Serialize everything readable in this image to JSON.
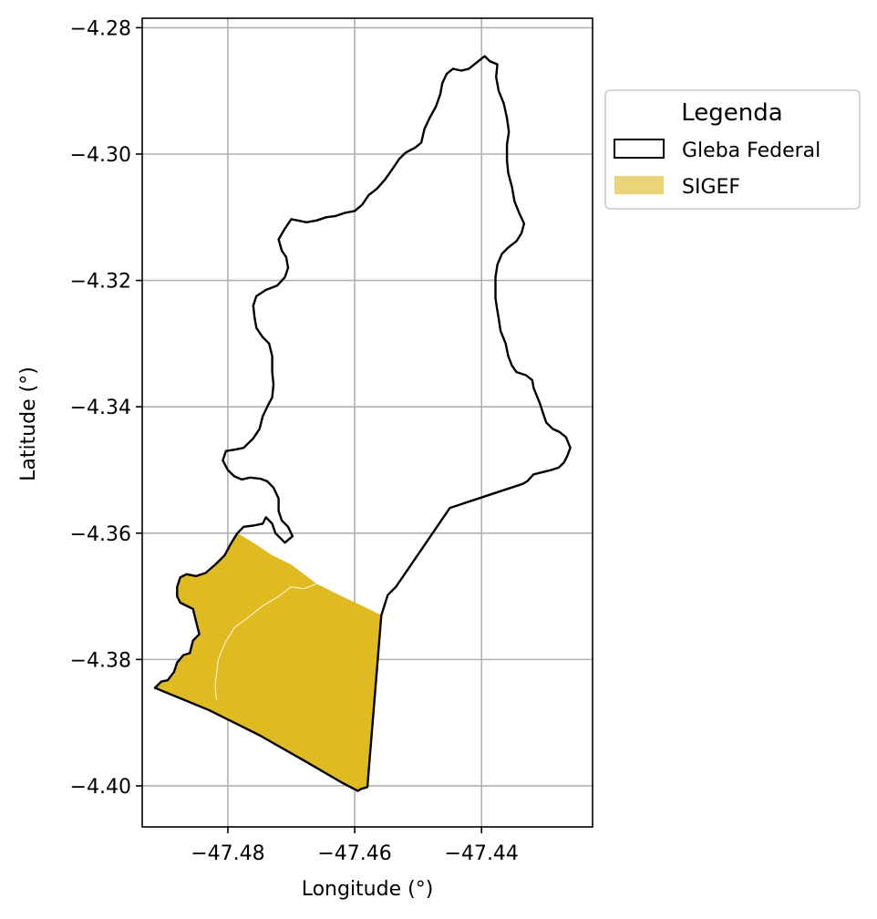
{
  "chart_data": {
    "type": "map",
    "xlabel": "Longitude (°)",
    "ylabel": "Latitude (°)",
    "xlim": [
      -47.4935,
      -47.4225
    ],
    "ylim": [
      -4.4065,
      -4.2785
    ],
    "grid": true,
    "x_ticks": [
      {
        "value": -47.48,
        "label": "−47.48"
      },
      {
        "value": -47.46,
        "label": "−47.46"
      },
      {
        "value": -47.44,
        "label": "−47.44"
      }
    ],
    "y_ticks": [
      {
        "value": -4.28,
        "label": "−4.28"
      },
      {
        "value": -4.3,
        "label": "−4.30"
      },
      {
        "value": -4.32,
        "label": "−4.32"
      },
      {
        "value": -4.34,
        "label": "−4.34"
      },
      {
        "value": -4.36,
        "label": "−4.36"
      },
      {
        "value": -4.38,
        "label": "−4.38"
      },
      {
        "value": -4.4,
        "label": "−4.40"
      }
    ],
    "legend": {
      "title": "Legenda",
      "placement": "outside-upper-right",
      "entries": [
        {
          "label": "Gleba Federal",
          "style": "outline",
          "color": "#000000"
        },
        {
          "label": "SIGEF",
          "style": "fill",
          "color": "#ebd477"
        }
      ]
    },
    "layers": [
      {
        "name": "Gleba Federal",
        "style": "outline",
        "stroke": "#000000",
        "coordinates": [
          [
            -47.4915,
            -4.3845
          ],
          [
            -47.4905,
            -4.3835
          ],
          [
            -47.4895,
            -4.3833
          ],
          [
            -47.4885,
            -4.382
          ],
          [
            -47.488,
            -4.3805
          ],
          [
            -47.487,
            -4.3793
          ],
          [
            -47.486,
            -4.379
          ],
          [
            -47.4855,
            -4.377
          ],
          [
            -47.4845,
            -4.376
          ],
          [
            -47.485,
            -4.374
          ],
          [
            -47.4855,
            -4.372
          ],
          [
            -47.4865,
            -4.3715
          ],
          [
            -47.4875,
            -4.371
          ],
          [
            -47.488,
            -4.37
          ],
          [
            -47.488,
            -4.3685
          ],
          [
            -47.4875,
            -4.367
          ],
          [
            -47.4865,
            -4.3665
          ],
          [
            -47.485,
            -4.3668
          ],
          [
            -47.4835,
            -4.3663
          ],
          [
            -47.482,
            -4.365
          ],
          [
            -47.4805,
            -4.3635
          ],
          [
            -47.4797,
            -4.362
          ],
          [
            -47.479,
            -4.3608
          ],
          [
            -47.4785,
            -4.36
          ],
          [
            -47.4775,
            -4.359
          ],
          [
            -47.476,
            -4.3588
          ],
          [
            -47.4745,
            -4.3585
          ],
          [
            -47.474,
            -4.3575
          ],
          [
            -47.473,
            -4.3585
          ],
          [
            -47.4725,
            -4.36
          ],
          [
            -47.471,
            -4.3615
          ],
          [
            -47.4698,
            -4.3605
          ],
          [
            -47.4705,
            -4.359
          ],
          [
            -47.4715,
            -4.358
          ],
          [
            -47.472,
            -4.3565
          ],
          [
            -47.472,
            -4.3545
          ],
          [
            -47.4728,
            -4.3528
          ],
          [
            -47.4738,
            -4.3518
          ],
          [
            -47.4748,
            -4.3514
          ],
          [
            -47.4765,
            -4.3512
          ],
          [
            -47.4778,
            -4.3515
          ],
          [
            -47.479,
            -4.351
          ],
          [
            -47.48,
            -4.35
          ],
          [
            -47.4808,
            -4.3485
          ],
          [
            -47.4803,
            -4.347
          ],
          [
            -47.479,
            -4.3468
          ],
          [
            -47.4775,
            -4.3465
          ],
          [
            -47.476,
            -4.345
          ],
          [
            -47.475,
            -4.3435
          ],
          [
            -47.4745,
            -4.3415
          ],
          [
            -47.4738,
            -4.34
          ],
          [
            -47.473,
            -4.3385
          ],
          [
            -47.4728,
            -4.3365
          ],
          [
            -47.473,
            -4.3345
          ],
          [
            -47.473,
            -4.332
          ],
          [
            -47.4735,
            -4.33
          ],
          [
            -47.4745,
            -4.329
          ],
          [
            -47.4755,
            -4.3275
          ],
          [
            -47.4758,
            -4.3258
          ],
          [
            -47.476,
            -4.324
          ],
          [
            -47.4755,
            -4.3225
          ],
          [
            -47.474,
            -4.3215
          ],
          [
            -47.4722,
            -4.3208
          ],
          [
            -47.471,
            -4.3195
          ],
          [
            -47.4705,
            -4.318
          ],
          [
            -47.4708,
            -4.3163
          ],
          [
            -47.4715,
            -4.3153
          ],
          [
            -47.472,
            -4.3135
          ],
          [
            -47.471,
            -4.3118
          ],
          [
            -47.47,
            -4.3103
          ],
          [
            -47.469,
            -4.3105
          ],
          [
            -47.4676,
            -4.3108
          ],
          [
            -47.466,
            -4.3105
          ],
          [
            -47.4645,
            -4.31
          ],
          [
            -47.463,
            -4.3098
          ],
          [
            -47.4615,
            -4.3093
          ],
          [
            -47.46,
            -4.309
          ],
          [
            -47.4588,
            -4.308
          ],
          [
            -47.4578,
            -4.3065
          ],
          [
            -47.4565,
            -4.3055
          ],
          [
            -47.4552,
            -4.304
          ],
          [
            -47.454,
            -4.3023
          ],
          [
            -47.453,
            -4.3008
          ],
          [
            -47.452,
            -4.2998
          ],
          [
            -47.4505,
            -4.299
          ],
          [
            -47.4495,
            -4.2982
          ],
          [
            -47.449,
            -4.296
          ],
          [
            -47.4482,
            -4.2943
          ],
          [
            -47.4472,
            -4.2925
          ],
          [
            -47.4465,
            -4.2905
          ],
          [
            -47.4462,
            -4.2888
          ],
          [
            -47.4455,
            -4.2873
          ],
          [
            -47.4445,
            -4.2865
          ],
          [
            -47.4432,
            -4.2868
          ],
          [
            -47.442,
            -4.2865
          ],
          [
            -47.4405,
            -4.2853
          ],
          [
            -47.4395,
            -4.2845
          ],
          [
            -47.4387,
            -4.2853
          ],
          [
            -47.4375,
            -4.2858
          ],
          [
            -47.4377,
            -4.2878
          ],
          [
            -47.4373,
            -4.29
          ],
          [
            -47.4365,
            -4.292
          ],
          [
            -47.436,
            -4.2943
          ],
          [
            -47.4357,
            -4.2965
          ],
          [
            -47.436,
            -4.2985
          ],
          [
            -47.436,
            -4.301
          ],
          [
            -47.4358,
            -4.303
          ],
          [
            -47.4352,
            -4.3052
          ],
          [
            -47.4348,
            -4.3075
          ],
          [
            -47.434,
            -4.3095
          ],
          [
            -47.4333,
            -4.311
          ],
          [
            -47.4337,
            -4.3125
          ],
          [
            -47.4345,
            -4.3138
          ],
          [
            -47.4358,
            -4.3148
          ],
          [
            -47.4368,
            -4.3158
          ],
          [
            -47.4375,
            -4.3175
          ],
          [
            -47.4378,
            -4.3195
          ],
          [
            -47.4378,
            -4.321
          ],
          [
            -47.4378,
            -4.3228
          ],
          [
            -47.4376,
            -4.3242
          ],
          [
            -47.4373,
            -4.326
          ],
          [
            -47.437,
            -4.328
          ],
          [
            -47.4362,
            -4.33
          ],
          [
            -47.4358,
            -4.332
          ],
          [
            -47.4352,
            -4.3335
          ],
          [
            -47.4345,
            -4.3345
          ],
          [
            -47.433,
            -4.335
          ],
          [
            -47.432,
            -4.3358
          ],
          [
            -47.4318,
            -4.337
          ],
          [
            -47.4312,
            -4.3385
          ],
          [
            -47.4308,
            -4.3395
          ],
          [
            -47.4303,
            -4.341
          ],
          [
            -47.4298,
            -4.3425
          ],
          [
            -47.4288,
            -4.3435
          ],
          [
            -47.4277,
            -4.344
          ],
          [
            -47.4267,
            -4.3448
          ],
          [
            -47.426,
            -4.3465
          ],
          [
            -47.4265,
            -4.3478
          ],
          [
            -47.427,
            -4.3488
          ],
          [
            -47.4278,
            -4.3496
          ],
          [
            -47.429,
            -4.35
          ],
          [
            -47.4302,
            -4.3503
          ],
          [
            -47.4318,
            -4.3507
          ],
          [
            -47.4328,
            -4.3518
          ],
          [
            -47.4335,
            -4.3522
          ],
          [
            -47.445,
            -4.356
          ],
          [
            -47.4535,
            -4.3685
          ],
          [
            -47.4548,
            -4.3698
          ],
          [
            -47.4558,
            -4.373
          ],
          [
            -47.458,
            -4.4002
          ],
          [
            -47.459,
            -4.4005
          ],
          [
            -47.4595,
            -4.4008
          ],
          [
            -47.462,
            -4.3995
          ],
          [
            -47.468,
            -4.396
          ],
          [
            -47.475,
            -4.392
          ],
          [
            -47.483,
            -4.388
          ],
          [
            -47.4915,
            -4.3845
          ]
        ]
      },
      {
        "name": "SIGEF",
        "style": "fill",
        "fill": "#dfba20",
        "coordinates": [
          [
            -47.4915,
            -4.3845
          ],
          [
            -47.4905,
            -4.3835
          ],
          [
            -47.4895,
            -4.3833
          ],
          [
            -47.4885,
            -4.382
          ],
          [
            -47.488,
            -4.3805
          ],
          [
            -47.487,
            -4.3793
          ],
          [
            -47.486,
            -4.379
          ],
          [
            -47.4855,
            -4.377
          ],
          [
            -47.4845,
            -4.376
          ],
          [
            -47.485,
            -4.374
          ],
          [
            -47.4855,
            -4.372
          ],
          [
            -47.4865,
            -4.3715
          ],
          [
            -47.4875,
            -4.371
          ],
          [
            -47.488,
            -4.37
          ],
          [
            -47.488,
            -4.3685
          ],
          [
            -47.4875,
            -4.367
          ],
          [
            -47.4865,
            -4.3665
          ],
          [
            -47.485,
            -4.3668
          ],
          [
            -47.4835,
            -4.3663
          ],
          [
            -47.482,
            -4.365
          ],
          [
            -47.4805,
            -4.3635
          ],
          [
            -47.4797,
            -4.362
          ],
          [
            -47.479,
            -4.3608
          ],
          [
            -47.4785,
            -4.36
          ],
          [
            -47.476,
            -4.3615
          ],
          [
            -47.473,
            -4.3635
          ],
          [
            -47.47,
            -4.365
          ],
          [
            -47.466,
            -4.368
          ],
          [
            -47.462,
            -4.37
          ],
          [
            -47.4578,
            -4.372
          ],
          [
            -47.4558,
            -4.373
          ],
          [
            -47.458,
            -4.4002
          ],
          [
            -47.459,
            -4.4005
          ],
          [
            -47.4595,
            -4.4008
          ],
          [
            -47.462,
            -4.3995
          ],
          [
            -47.468,
            -4.396
          ],
          [
            -47.475,
            -4.392
          ],
          [
            -47.483,
            -4.388
          ],
          [
            -47.4915,
            -4.3845
          ]
        ]
      },
      {
        "name": "SIGEF parcel boundary",
        "style": "line",
        "stroke": "#ffffff",
        "coordinates": [
          [
            -47.466,
            -4.368
          ],
          [
            -47.468,
            -4.3688
          ],
          [
            -47.47,
            -4.3685
          ],
          [
            -47.472,
            -4.37
          ],
          [
            -47.4745,
            -4.3715
          ],
          [
            -47.477,
            -4.3735
          ],
          [
            -47.479,
            -4.375
          ],
          [
            -47.4805,
            -4.3775
          ],
          [
            -47.4815,
            -4.38
          ],
          [
            -47.482,
            -4.384
          ],
          [
            -47.4818,
            -4.3865
          ]
        ]
      }
    ]
  }
}
